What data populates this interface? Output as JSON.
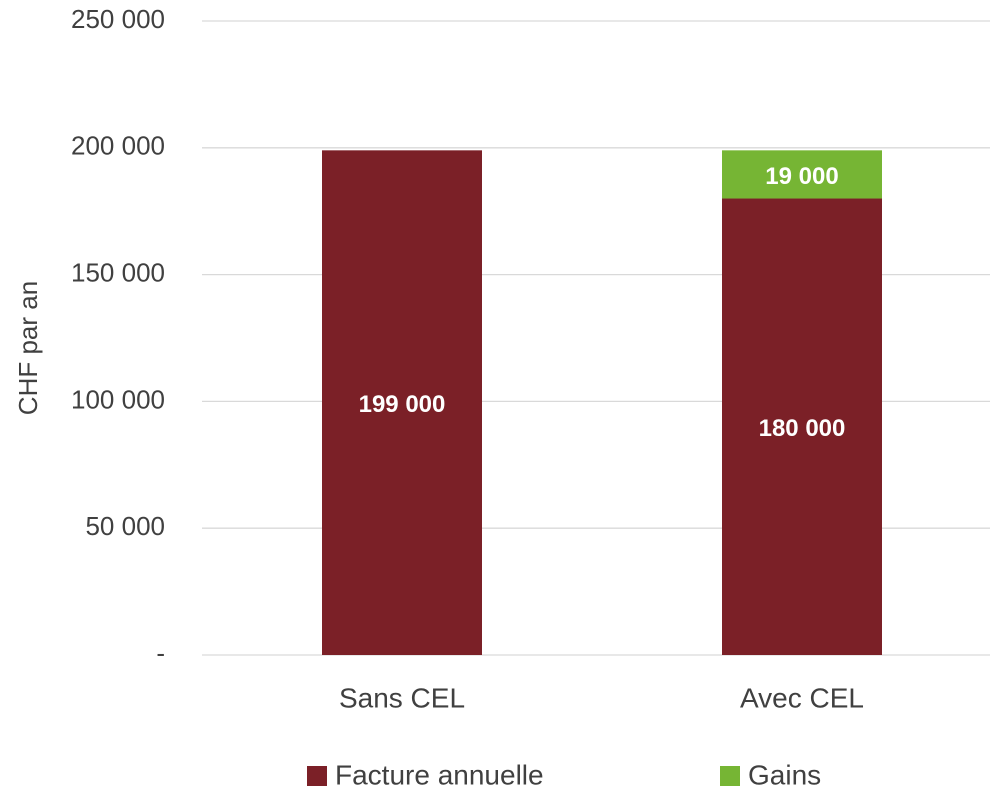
{
  "chart_data": {
    "type": "stacked_bar",
    "y_label": "CHF par an",
    "categories": [
      "Sans CEL",
      "Avec CEL"
    ],
    "series": [
      {
        "name": "Facture annuelle",
        "color": "#7b2027",
        "values": [
          199000,
          180000
        ],
        "value_labels": [
          "199 000",
          "180 000"
        ]
      },
      {
        "name": "Gains",
        "color": "#76b534",
        "values": [
          null,
          19000
        ],
        "value_labels": [
          null,
          "19 000"
        ]
      }
    ],
    "ylim": [
      0,
      250000
    ],
    "yticks": [
      {
        "value": 0,
        "label": "-"
      },
      {
        "value": 50000,
        "label": "50 000"
      },
      {
        "value": 100000,
        "label": "100 000"
      },
      {
        "value": 150000,
        "label": "150 000"
      },
      {
        "value": 200000,
        "label": "200 000"
      },
      {
        "value": 250000,
        "label": "250 000"
      }
    ],
    "grid": true,
    "legend": "bottom"
  }
}
